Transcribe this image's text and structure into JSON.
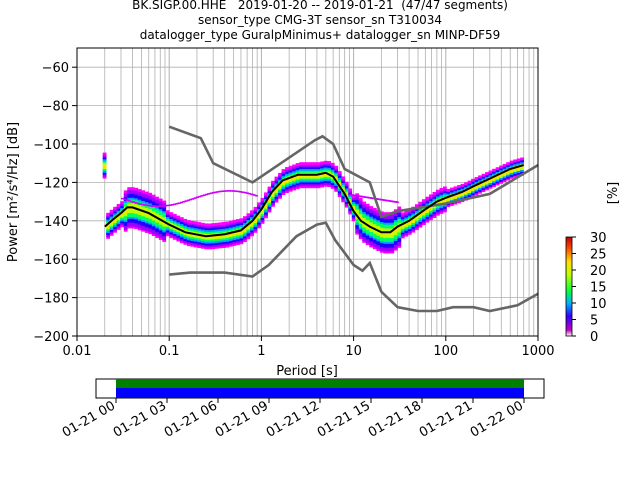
{
  "header": {
    "line1": "BK.SIGP.00.HHE   2019-01-20 -- 2019-01-21  (47/47 segments)",
    "line2": "sensor_type CMG-3T sensor_sn T310034",
    "line3": "datalogger_type GuralpMinimus+ datalogger_sn MINP-DF59"
  },
  "chart_data": {
    "type": "heatmap",
    "xlabel": "Period [s]",
    "ylabel": "Power [m²/s⁴/Hz] [dB]",
    "xscale": "log",
    "xlim": [
      0.01,
      1000
    ],
    "ylim": [
      -200,
      -50
    ],
    "x_ticks": [
      0.01,
      0.1,
      1,
      10,
      100,
      1000
    ],
    "x_tick_labels": [
      "0.01",
      "0.1",
      "1",
      "10",
      "100",
      "1000"
    ],
    "y_ticks": [
      -200,
      -180,
      -160,
      -140,
      -120,
      -100,
      -80,
      -60
    ],
    "y_tick_labels": [
      "−200",
      "−180",
      "−160",
      "−140",
      "−120",
      "−100",
      "−80",
      "−60"
    ],
    "grid": true,
    "noise_model_high": [
      [
        0.1,
        -91
      ],
      [
        0.22,
        -97
      ],
      [
        0.3,
        -110
      ],
      [
        0.8,
        -120
      ],
      [
        3.8,
        -98
      ],
      [
        4.6,
        -96
      ],
      [
        6,
        -100
      ],
      [
        8,
        -113
      ],
      [
        15,
        -120
      ],
      [
        20,
        -138
      ],
      [
        30,
        -135
      ],
      [
        100,
        -131
      ],
      [
        300,
        -126
      ],
      [
        1000,
        -111
      ]
    ],
    "noise_model_low": [
      [
        0.1,
        -168
      ],
      [
        0.17,
        -167
      ],
      [
        0.4,
        -167
      ],
      [
        0.8,
        -169
      ],
      [
        1.2,
        -163
      ],
      [
        2.4,
        -148
      ],
      [
        4,
        -142
      ],
      [
        5,
        -141
      ],
      [
        6.3,
        -150
      ],
      [
        10,
        -163
      ],
      [
        12.5,
        -166
      ],
      [
        15,
        -162
      ],
      [
        20,
        -177
      ],
      [
        30,
        -185
      ],
      [
        50,
        -187
      ],
      [
        80,
        -187
      ],
      [
        120,
        -185
      ],
      [
        200,
        -185
      ],
      [
        300,
        -187
      ],
      [
        600,
        -184
      ],
      [
        1000,
        -178
      ]
    ],
    "mode_curve": [
      [
        0.02,
        -143
      ],
      [
        0.025,
        -139
      ],
      [
        0.03,
        -136
      ],
      [
        0.035,
        -133
      ],
      [
        0.04,
        -133
      ],
      [
        0.06,
        -136
      ],
      [
        0.1,
        -142
      ],
      [
        0.15,
        -146
      ],
      [
        0.25,
        -148
      ],
      [
        0.4,
        -147
      ],
      [
        0.6,
        -145
      ],
      [
        0.8,
        -140
      ],
      [
        1,
        -134
      ],
      [
        1.3,
        -125
      ],
      [
        1.7,
        -119
      ],
      [
        2.5,
        -116
      ],
      [
        4,
        -116
      ],
      [
        5,
        -115
      ],
      [
        6,
        -117
      ],
      [
        8,
        -126
      ],
      [
        10,
        -135
      ],
      [
        12,
        -140
      ],
      [
        15,
        -143
      ],
      [
        20,
        -146
      ],
      [
        25,
        -146
      ],
      [
        30,
        -143
      ],
      [
        40,
        -140
      ],
      [
        60,
        -134
      ],
      [
        80,
        -130
      ],
      [
        100,
        -128
      ],
      [
        150,
        -125
      ],
      [
        200,
        -122
      ],
      [
        300,
        -118
      ],
      [
        500,
        -113
      ],
      [
        700,
        -111
      ]
    ],
    "colorbar": {
      "label": "[%]",
      "min": 0,
      "max": 30,
      "ticks": [
        0,
        5,
        10,
        15,
        20,
        25,
        30
      ],
      "tick_labels": [
        "0",
        "5",
        "10",
        "15",
        "20",
        "25",
        "30"
      ]
    },
    "coverage": {
      "tick_labels": [
        "01-21 00",
        "01-21 03",
        "01-21 06",
        "01-21 09",
        "01-21 12",
        "01-21 15",
        "01-21 18",
        "01-21 21",
        "01-22 00"
      ],
      "colors": {
        "top": "#008000",
        "bottom": "#0000ff"
      }
    }
  }
}
